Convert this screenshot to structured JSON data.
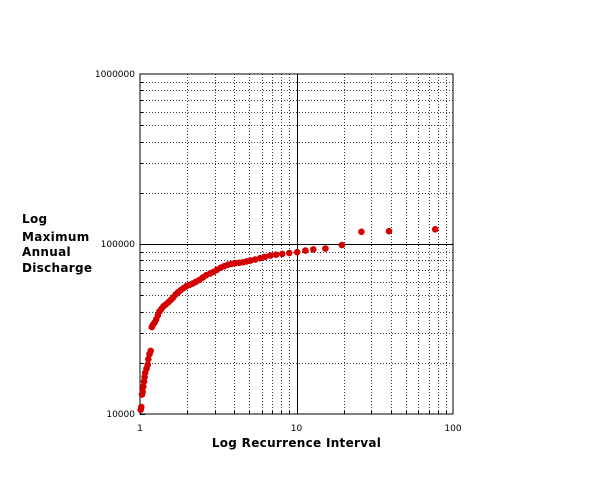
{
  "chart_data": {
    "type": "scatter",
    "xlabel": "Log Recurrence Interval",
    "ylabel": [
      "Log",
      "Maximum",
      "Annual",
      "Discharge"
    ],
    "xscale": "log",
    "yscale": "log",
    "xlim": [
      1,
      100
    ],
    "ylim": [
      10000,
      1000000
    ],
    "x_tick_labels": [
      "1",
      "10",
      "100"
    ],
    "y_tick_labels": [
      "10000",
      "100000",
      "1000000"
    ],
    "grid": true,
    "marker_color": "#d40000",
    "points": [
      [
        1.01,
        10600
      ],
      [
        1.02,
        11000
      ],
      [
        1.03,
        13000
      ],
      [
        1.04,
        13500
      ],
      [
        1.05,
        14500
      ],
      [
        1.06,
        15500
      ],
      [
        1.07,
        16500
      ],
      [
        1.08,
        17500
      ],
      [
        1.1,
        18500
      ],
      [
        1.12,
        19500
      ],
      [
        1.13,
        21000
      ],
      [
        1.15,
        22500
      ],
      [
        1.17,
        23500
      ],
      [
        1.19,
        32500
      ],
      [
        1.21,
        33500
      ],
      [
        1.24,
        34500
      ],
      [
        1.27,
        36000
      ],
      [
        1.3,
        38000
      ],
      [
        1.33,
        40000
      ],
      [
        1.37,
        41500
      ],
      [
        1.41,
        43000
      ],
      [
        1.46,
        44000
      ],
      [
        1.52,
        45500
      ],
      [
        1.58,
        47000
      ],
      [
        1.63,
        48500
      ],
      [
        1.69,
        50500
      ],
      [
        1.75,
        52000
      ],
      [
        1.82,
        53500
      ],
      [
        1.9,
        55000
      ],
      [
        1.98,
        56500
      ],
      [
        2.07,
        57500
      ],
      [
        2.17,
        58500
      ],
      [
        2.28,
        60000
      ],
      [
        2.4,
        61500
      ],
      [
        2.52,
        63500
      ],
      [
        2.65,
        65500
      ],
      [
        2.8,
        67000
      ],
      [
        2.95,
        68500
      ],
      [
        3.1,
        70500
      ],
      [
        3.28,
        72500
      ],
      [
        3.45,
        74000
      ],
      [
        3.65,
        75500
      ],
      [
        3.85,
        76500
      ],
      [
        4.05,
        77000
      ],
      [
        4.3,
        77500
      ],
      [
        4.55,
        78000
      ],
      [
        4.8,
        79000
      ],
      [
        5.1,
        80000
      ],
      [
        5.45,
        81000
      ],
      [
        5.85,
        82500
      ],
      [
        6.3,
        84000
      ],
      [
        6.8,
        85500
      ],
      [
        7.4,
        86500
      ],
      [
        8.1,
        87500
      ],
      [
        9.0,
        88500
      ],
      [
        10.1,
        89500
      ],
      [
        11.4,
        91500
      ],
      [
        12.8,
        93000
      ],
      [
        15.3,
        94000
      ],
      [
        19.5,
        98500
      ],
      [
        26.0,
        118000
      ],
      [
        39.0,
        119000
      ],
      [
        77.0,
        122000
      ]
    ]
  }
}
